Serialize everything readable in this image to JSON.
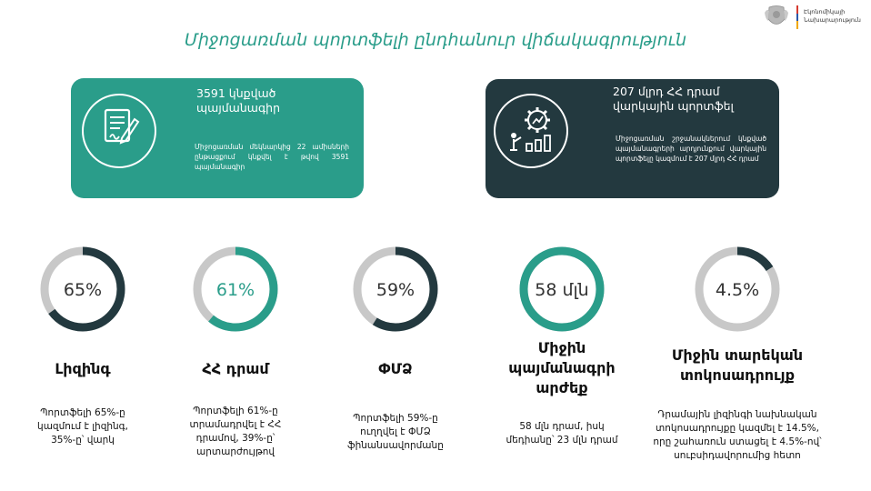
{
  "logo": {
    "line1": "Էկոնոմիկայի",
    "line2": "Նախարարություն"
  },
  "title": "Միջոցառման պորտֆելի ընդհանուր վիճակագրություն",
  "cards": {
    "left": {
      "icon": "contract-document-pen-icon",
      "heading_line1": "3591 կնքված",
      "heading_line2": "պայմանագիր",
      "body": "Միջոցառման մեկնարկից 22 ամիսների ընթացքում կնքվել է թվով 3591 պայմանագիր",
      "color": "#2a9d8a"
    },
    "right": {
      "icon": "growth-chart-gear-icon",
      "heading_line1": "207 մլրդ ՀՀ դրամ",
      "heading_line2": "վարկային պորտֆել",
      "body": "Միջոցառման շրջանակներում կնքված պայմանագրերի արդյունքում վարկային պորտֆելը կազմում է 207 մլրդ ՀՀ դրամ",
      "color": "#23393f"
    }
  },
  "stats": [
    {
      "value_label": "65%",
      "fraction": 0.65,
      "ring_color": "#23393f",
      "title_lines": [
        "Լիզինգ"
      ],
      "desc_lines": [
        "Պորտֆելի 65%-ը",
        "կազմում է լիզինգ,",
        "35%-ը՝ վարկ"
      ]
    },
    {
      "value_label": "61%",
      "fraction": 0.61,
      "ring_color": "#2a9d8a",
      "title_lines": [
        "ՀՀ դրամ"
      ],
      "desc_lines": [
        "Պորտֆելի 61%-ը",
        "տրամադրվել է ՀՀ",
        "դրամով, 39%-ը՝",
        "արտարժույթով"
      ]
    },
    {
      "value_label": "59%",
      "fraction": 0.59,
      "ring_color": "#23393f",
      "title_lines": [
        "ՓՄՁ"
      ],
      "desc_lines": [
        "Պորտֆելի 59%-ը",
        "ուղղվել է ՓՄՁ",
        "ֆինանսավորմանը"
      ]
    },
    {
      "value_label": "58 մլն",
      "fraction": 1.0,
      "ring_color": "#2a9d8a",
      "title_lines": [
        "Միջին",
        "պայմանագրի",
        "արժեք"
      ],
      "desc_lines": [
        "58 մլն դրամ, իսկ",
        "մեդիանը՝ 23 մլն դրամ"
      ]
    },
    {
      "value_label": "4.5%",
      "fraction": 0.16,
      "ring_color": "#23393f",
      "title_lines": [
        "Միջին տարեկան",
        "տոկոսադրույք"
      ],
      "desc_lines": [
        "Դրամային լիզինգի նախնական",
        "տոկոսադրույքը կազմել է 14.5%,",
        "որը շահառուն ստացել է 4.5%-ով՝",
        "սուբսիդավորումից հետո"
      ]
    }
  ],
  "colors": {
    "track": "#c8c8c8",
    "teal": "#2a9d8a",
    "dark": "#23393f"
  }
}
